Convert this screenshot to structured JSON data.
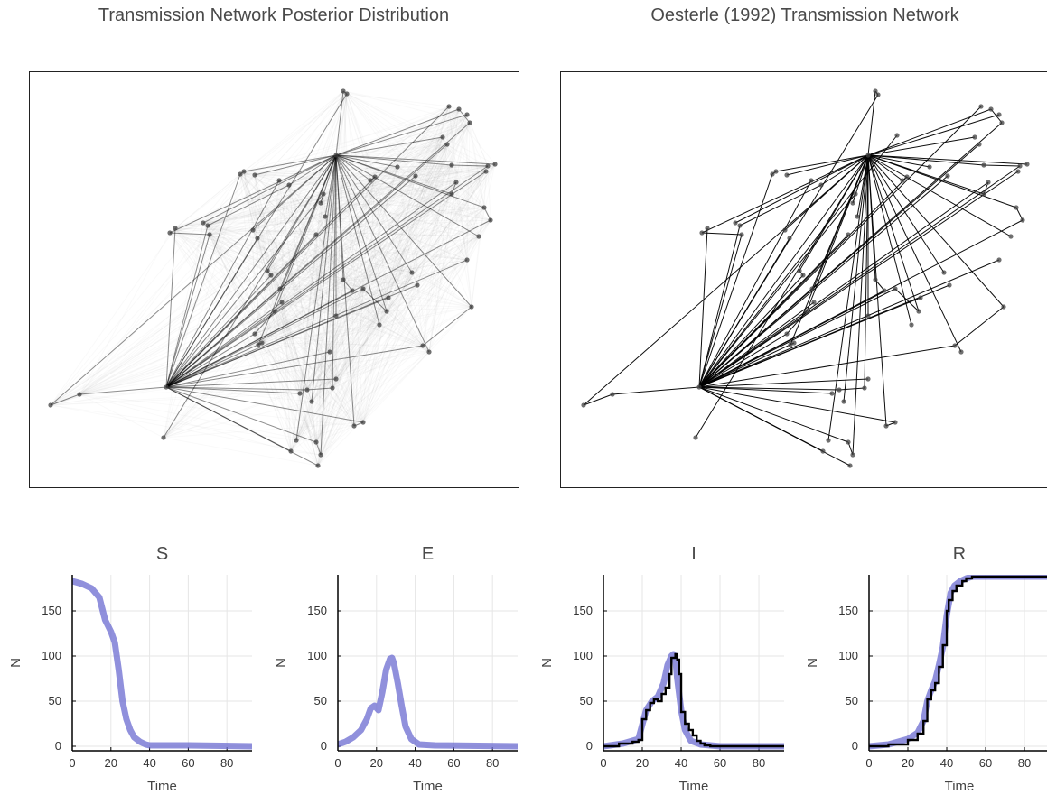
{
  "titles": {
    "left": "Transmission Network Posterior Distribution",
    "right": "Oesterle (1992) Transmission Network"
  },
  "colors": {
    "posterior_band": "#6b6bd0",
    "observed_line": "#000000",
    "node": "#404040",
    "edge": "#000000",
    "grid": "#e6e6e6"
  },
  "chart_data": [
    {
      "type": "line",
      "title": "S",
      "xlabel": "Time",
      "ylabel": "N",
      "xlim": [
        0,
        93
      ],
      "ylim": [
        -5,
        190
      ],
      "xticks": [
        "0",
        "20",
        "40",
        "60",
        "80"
      ],
      "yticks": [
        "0",
        "50",
        "100",
        "150"
      ],
      "grid": true,
      "series": [
        {
          "role": "posterior-band",
          "x": [
            0,
            5,
            10,
            14,
            17,
            20,
            22,
            24,
            26,
            28,
            30,
            32,
            35,
            38,
            40,
            45,
            60,
            93
          ],
          "values": [
            183,
            180,
            175,
            165,
            140,
            127,
            115,
            85,
            50,
            30,
            18,
            10,
            5,
            2,
            1,
            1,
            1,
            0
          ]
        }
      ]
    },
    {
      "type": "line",
      "title": "E",
      "xlabel": "Time",
      "ylabel": "N",
      "xlim": [
        0,
        93
      ],
      "ylim": [
        -5,
        190
      ],
      "xticks": [
        "0",
        "20",
        "40",
        "60",
        "80"
      ],
      "yticks": [
        "0",
        "50",
        "100",
        "150"
      ],
      "grid": true,
      "series": [
        {
          "role": "posterior-band",
          "x": [
            0,
            4,
            8,
            12,
            15,
            17,
            19,
            21,
            23,
            25,
            27,
            28,
            29,
            31,
            33,
            35,
            38,
            42,
            50,
            93
          ],
          "values": [
            2,
            5,
            10,
            18,
            30,
            42,
            45,
            40,
            60,
            85,
            97,
            98,
            92,
            70,
            45,
            22,
            8,
            2,
            1,
            0
          ]
        }
      ]
    },
    {
      "type": "line",
      "title": "I",
      "xlabel": "Time",
      "ylabel": "N",
      "xlim": [
        0,
        93
      ],
      "ylim": [
        -5,
        190
      ],
      "xticks": [
        "0",
        "20",
        "40",
        "60",
        "80"
      ],
      "yticks": [
        "0",
        "50",
        "100",
        "150"
      ],
      "grid": true,
      "series": [
        {
          "role": "posterior-band",
          "x": [
            0,
            10,
            18,
            22,
            25,
            28,
            31,
            33,
            35,
            36,
            37,
            38,
            40,
            42,
            45,
            50,
            60,
            93
          ],
          "values": [
            0,
            3,
            8,
            40,
            50,
            55,
            70,
            90,
            100,
            102,
            98,
            75,
            40,
            18,
            6,
            2,
            0,
            0
          ]
        },
        {
          "role": "observed",
          "x": [
            0,
            8,
            15,
            18,
            20,
            22,
            24,
            26,
            28,
            30,
            32,
            34,
            35,
            37,
            38,
            39,
            40,
            42,
            44,
            46,
            48,
            50,
            52,
            55,
            60,
            93
          ],
          "values": [
            0,
            3,
            5,
            7,
            30,
            40,
            48,
            52,
            50,
            58,
            65,
            80,
            98,
            102,
            96,
            80,
            38,
            25,
            18,
            12,
            6,
            3,
            1,
            0,
            0,
            0
          ]
        }
      ]
    },
    {
      "type": "line",
      "title": "R",
      "xlabel": "Time",
      "ylabel": "N",
      "xlim": [
        0,
        93
      ],
      "ylim": [
        -5,
        190
      ],
      "xticks": [
        "0",
        "20",
        "40",
        "60",
        "80"
      ],
      "yticks": [
        "0",
        "50",
        "100",
        "150"
      ],
      "grid": true,
      "series": [
        {
          "role": "posterior-band",
          "x": [
            0,
            10,
            20,
            25,
            28,
            30,
            32,
            34,
            36,
            38,
            40,
            42,
            44,
            47,
            50,
            53,
            93
          ],
          "values": [
            0,
            2,
            8,
            15,
            28,
            50,
            62,
            72,
            90,
            110,
            145,
            170,
            178,
            183,
            186,
            188,
            188
          ]
        },
        {
          "role": "observed",
          "x": [
            0,
            10,
            20,
            25,
            28,
            30,
            32,
            34,
            36,
            38,
            40,
            41,
            43,
            45,
            48,
            50,
            53,
            93
          ],
          "values": [
            0,
            2,
            7,
            14,
            28,
            52,
            62,
            70,
            88,
            112,
            150,
            162,
            172,
            178,
            183,
            186,
            188,
            188
          ]
        }
      ]
    }
  ]
}
